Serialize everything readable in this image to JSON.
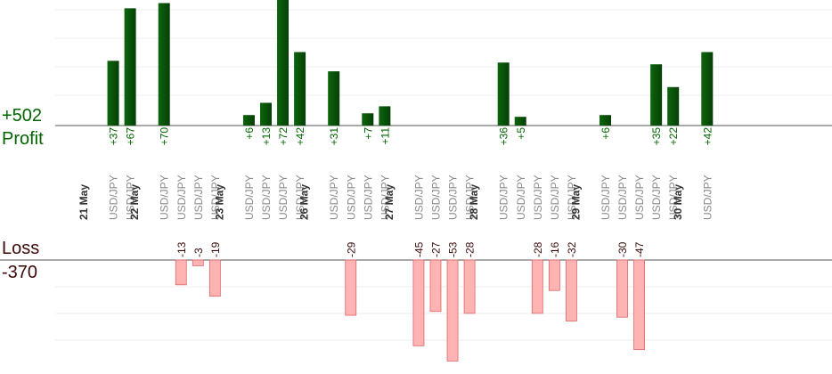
{
  "summary": {
    "profit_total": "+502",
    "profit_label": "Profit",
    "loss_label": "Loss",
    "loss_total": "-370"
  },
  "colors": {
    "profit_bar": "#0d650d",
    "profit_bar_dark": "#063f06",
    "profit_text": "#006400",
    "loss_bar": "#ffb3b3",
    "loss_bar_border": "#e06666",
    "loss_text": "#3a0a0a",
    "grid": "#eeeeee",
    "axis": "#555555"
  },
  "chart_data": {
    "type": "bar",
    "slot_label": "USD/JPY",
    "days": [
      {
        "label": "21 May",
        "trades": [
          37,
          67
        ]
      },
      {
        "label": "22 May",
        "trades": [
          70,
          -13,
          -3,
          -19
        ]
      },
      {
        "label": "23 May",
        "trades": [
          6,
          13,
          72,
          42
        ]
      },
      {
        "label": "26 May",
        "trades": [
          31,
          -29,
          7,
          11
        ]
      },
      {
        "label": "27 May",
        "trades": [
          -45,
          -27,
          -53,
          -28
        ]
      },
      {
        "label": "28 May",
        "trades": [
          36,
          5,
          -28,
          -16,
          -32
        ]
      },
      {
        "label": "29 May",
        "trades": [
          6,
          -30,
          -47,
          35,
          22
        ]
      },
      {
        "label": "30 May",
        "trades": [
          42
        ]
      }
    ]
  }
}
